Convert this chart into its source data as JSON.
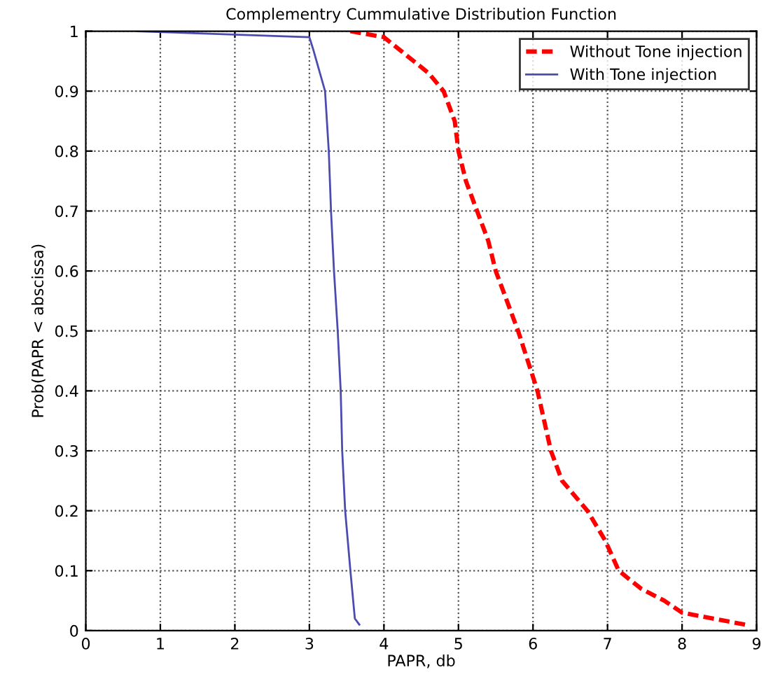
{
  "chart_data": {
    "type": "line",
    "title": "Complementry Cummulative Distribution Function",
    "xlabel": "PAPR, db",
    "ylabel": "Prob(PAPR < abscissa)",
    "series": [
      {
        "name": "Without Tone injection",
        "color": "#ff0000",
        "line_style": "dashed",
        "x": [
          3.55,
          4.0,
          4.3,
          4.6,
          4.8,
          4.95,
          5.0,
          5.1,
          5.25,
          5.4,
          5.5,
          5.65,
          5.8,
          6.06,
          6.24,
          6.39,
          6.73,
          6.97,
          7.15,
          7.45,
          7.76,
          8.0,
          8.42,
          8.85
        ],
        "values": [
          1,
          0.99,
          0.96,
          0.93,
          0.9,
          0.85,
          0.8,
          0.75,
          0.7,
          0.65,
          0.6,
          0.55,
          0.5,
          0.4,
          0.3,
          0.25,
          0.2,
          0.15,
          0.1,
          0.07,
          0.05,
          0.03,
          0.02,
          0.01
        ]
      },
      {
        "name": "With Tone injection",
        "color": "#4b4bb0",
        "line_style": "solid",
        "x": [
          0.7,
          3.0,
          3.05,
          3.21,
          3.26,
          3.29,
          3.33,
          3.38,
          3.42,
          3.44,
          3.48,
          3.55,
          3.61,
          3.67
        ],
        "values": [
          1,
          0.99,
          0.97,
          0.9,
          0.8,
          0.7,
          0.6,
          0.5,
          0.4,
          0.3,
          0.2,
          0.1,
          0.02,
          0.01
        ]
      }
    ],
    "xlim": [
      0,
      9
    ],
    "ylim": [
      0,
      1
    ],
    "xticks": [
      0,
      1,
      2,
      3,
      4,
      5,
      6,
      7,
      8,
      9
    ],
    "yticks": [
      0,
      0.1,
      0.2,
      0.3,
      0.4,
      0.5,
      0.6,
      0.7,
      0.8,
      0.9,
      1
    ],
    "grid": true,
    "legend": "top right"
  }
}
